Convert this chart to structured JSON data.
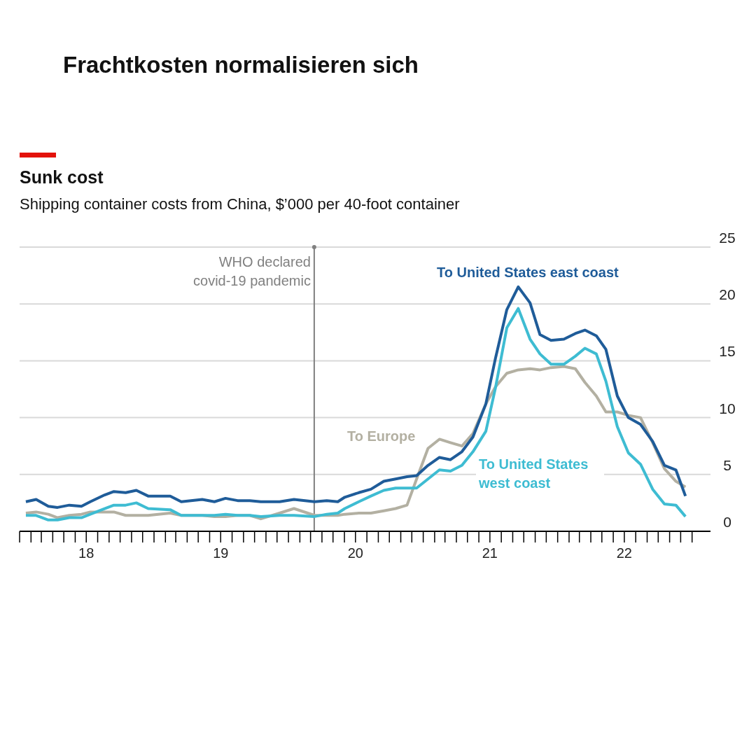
{
  "chart_data": {
    "type": "line",
    "title": "Frachtkosten normalisieren sich",
    "subtitle": "Sunk cost",
    "ylabel": "Shipping container costs from China, $’000 per 40-foot container",
    "x": [
      "2018-01-18",
      "2018-02-15",
      "2018-03-20",
      "2018-04-14",
      "2018-05-16",
      "2018-06-18",
      "2018-07-12",
      "2018-08-20",
      "2018-09-14",
      "2018-10-16",
      "2018-11-14",
      "2018-12-16",
      "2019-02-14",
      "2019-03-16",
      "2019-05-12",
      "2019-06-14",
      "2019-07-14",
      "2019-08-16",
      "2019-09-18",
      "2019-10-18",
      "2019-12-08",
      "2020-01-16",
      "2020-03-12",
      "2020-04-14",
      "2020-05-14",
      "2020-06-02",
      "2020-07-10",
      "2020-08-12",
      "2020-09-16",
      "2020-10-18",
      "2020-11-18",
      "2020-12-14",
      "2021-01-14",
      "2021-02-14",
      "2021-03-16",
      "2021-04-16",
      "2021-05-16",
      "2021-06-20",
      "2021-07-16",
      "2021-08-16",
      "2021-09-16",
      "2021-10-18",
      "2021-11-14",
      "2021-12-14",
      "2022-01-18",
      "2022-02-18",
      "2022-03-16",
      "2022-04-16",
      "2022-05-12",
      "2022-06-12",
      "2022-07-12",
      "2022-08-14",
      "2022-09-16",
      "2022-10-18",
      "2022-11-18",
      "2022-12-14"
    ],
    "series": [
      {
        "name": "To Europe",
        "color": "#b3b0a2",
        "values": [
          1.6,
          1.7,
          1.5,
          1.2,
          1.4,
          1.5,
          1.7,
          1.7,
          1.7,
          1.4,
          1.4,
          1.4,
          1.6,
          1.4,
          1.4,
          1.3,
          1.3,
          1.4,
          1.4,
          1.1,
          1.6,
          2.0,
          1.4,
          1.4,
          1.4,
          1.5,
          1.6,
          1.6,
          1.8,
          2.0,
          2.3,
          4.6,
          7.3,
          8.1,
          7.8,
          7.5,
          8.6,
          11.2,
          12.7,
          13.9,
          14.2,
          14.3,
          14.2,
          14.4,
          14.5,
          14.3,
          13.1,
          11.9,
          10.5,
          10.5,
          10.2,
          10.0,
          7.8,
          5.5,
          4.4,
          3.9
        ]
      },
      {
        "name": "To United States west coast",
        "color": "#3ebcd2",
        "values": [
          1.4,
          1.4,
          1.0,
          1.0,
          1.2,
          1.2,
          1.5,
          2.0,
          2.3,
          2.3,
          2.5,
          2.0,
          1.9,
          1.4,
          1.4,
          1.4,
          1.5,
          1.4,
          1.4,
          1.3,
          1.4,
          1.4,
          1.3,
          1.5,
          1.6,
          2.0,
          2.6,
          3.1,
          3.6,
          3.8,
          3.8,
          3.8,
          4.6,
          5.4,
          5.3,
          5.8,
          7.0,
          8.8,
          12.6,
          17.9,
          19.6,
          16.9,
          15.6,
          14.7,
          14.7,
          15.4,
          16.1,
          15.6,
          13.2,
          9.2,
          6.9,
          5.9,
          3.7,
          2.4,
          2.3,
          1.3
        ]
      },
      {
        "name": "To United States east coast",
        "color": "#1f5c99",
        "values": [
          2.6,
          2.8,
          2.2,
          2.1,
          2.3,
          2.2,
          2.6,
          3.2,
          3.5,
          3.4,
          3.6,
          3.1,
          3.1,
          2.6,
          2.8,
          2.6,
          2.9,
          2.7,
          2.7,
          2.6,
          2.6,
          2.8,
          2.6,
          2.7,
          2.6,
          3.0,
          3.4,
          3.7,
          4.4,
          4.6,
          4.8,
          4.9,
          5.8,
          6.5,
          6.3,
          7.0,
          8.3,
          11.2,
          15.2,
          19.5,
          21.5,
          20.1,
          17.3,
          16.8,
          16.9,
          17.4,
          17.7,
          17.2,
          16.0,
          11.9,
          10.0,
          9.4,
          7.9,
          5.8,
          5.4,
          3.1
        ]
      }
    ],
    "xlim": [
      "2018-01-01",
      "2023-02-20"
    ],
    "xticks": [
      {
        "value": "2018-01-01",
        "label": null
      },
      {
        "value": "2018-02-01",
        "label": null
      },
      {
        "value": "2018-03-01",
        "label": null
      },
      {
        "value": "2018-04-01",
        "label": null
      },
      {
        "value": "2018-05-01",
        "label": null
      },
      {
        "value": "2018-06-01",
        "label": null
      },
      {
        "value": "2018-07-01",
        "label": "18"
      },
      {
        "value": "2018-08-01",
        "label": null
      },
      {
        "value": "2018-09-01",
        "label": null
      },
      {
        "value": "2018-10-01",
        "label": null
      },
      {
        "value": "2018-11-01",
        "label": null
      },
      {
        "value": "2018-12-01",
        "label": null
      },
      {
        "value": "2019-01-01",
        "label": null
      },
      {
        "value": "2019-02-01",
        "label": null
      },
      {
        "value": "2019-03-01",
        "label": null
      },
      {
        "value": "2019-04-01",
        "label": null
      },
      {
        "value": "2019-05-01",
        "label": null
      },
      {
        "value": "2019-06-01",
        "label": null
      },
      {
        "value": "2019-07-01",
        "label": "19"
      },
      {
        "value": "2019-08-01",
        "label": null
      },
      {
        "value": "2019-09-01",
        "label": null
      },
      {
        "value": "2019-10-01",
        "label": null
      },
      {
        "value": "2019-11-01",
        "label": null
      },
      {
        "value": "2019-12-01",
        "label": null
      },
      {
        "value": "2020-01-01",
        "label": null
      },
      {
        "value": "2020-02-01",
        "label": null
      },
      {
        "value": "2020-03-01",
        "label": null
      },
      {
        "value": "2020-04-01",
        "label": null
      },
      {
        "value": "2020-05-01",
        "label": null
      },
      {
        "value": "2020-06-01",
        "label": null
      },
      {
        "value": "2020-07-01",
        "label": "20"
      },
      {
        "value": "2020-08-01",
        "label": null
      },
      {
        "value": "2020-09-01",
        "label": null
      },
      {
        "value": "2020-10-01",
        "label": null
      },
      {
        "value": "2020-11-01",
        "label": null
      },
      {
        "value": "2020-12-01",
        "label": null
      },
      {
        "value": "2021-01-01",
        "label": null
      },
      {
        "value": "2021-02-01",
        "label": null
      },
      {
        "value": "2021-03-01",
        "label": null
      },
      {
        "value": "2021-04-01",
        "label": null
      },
      {
        "value": "2021-05-01",
        "label": null
      },
      {
        "value": "2021-06-01",
        "label": null
      },
      {
        "value": "2021-07-01",
        "label": "21"
      },
      {
        "value": "2021-08-01",
        "label": null
      },
      {
        "value": "2021-09-01",
        "label": null
      },
      {
        "value": "2021-10-01",
        "label": null
      },
      {
        "value": "2021-11-01",
        "label": null
      },
      {
        "value": "2021-12-01",
        "label": null
      },
      {
        "value": "2022-01-01",
        "label": null
      },
      {
        "value": "2022-02-01",
        "label": null
      },
      {
        "value": "2022-03-01",
        "label": null
      },
      {
        "value": "2022-04-01",
        "label": null
      },
      {
        "value": "2022-05-01",
        "label": null
      },
      {
        "value": "2022-06-01",
        "label": null
      },
      {
        "value": "2022-07-01",
        "label": "22"
      },
      {
        "value": "2022-08-01",
        "label": null
      },
      {
        "value": "2022-09-01",
        "label": null
      },
      {
        "value": "2022-10-01",
        "label": null
      },
      {
        "value": "2022-11-01",
        "label": null
      },
      {
        "value": "2022-12-01",
        "label": null
      },
      {
        "value": "2023-01-01",
        "label": null
      }
    ],
    "ylim": [
      0,
      25
    ],
    "yticks": [
      0,
      5,
      10,
      15,
      20,
      25
    ],
    "grid": "y",
    "legend": false,
    "marker": "none",
    "line_style": "solid",
    "ref_lines": [
      {
        "axis": "x",
        "value": "2020-03-11",
        "label": "WHO declared covid-19 pandemic",
        "color": "#808080"
      }
    ]
  }
}
